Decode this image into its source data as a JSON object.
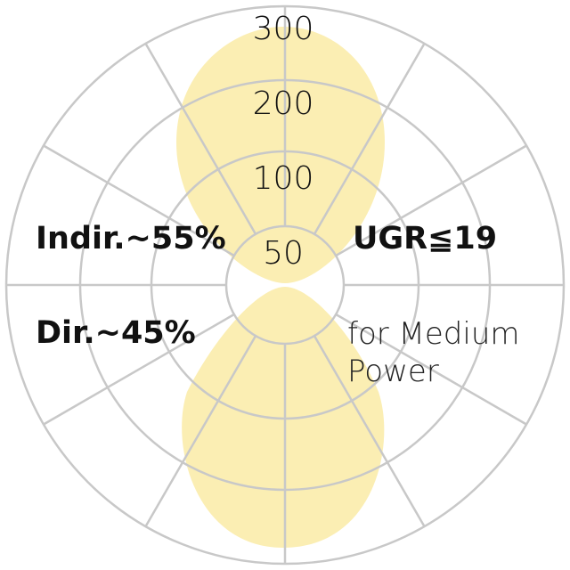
{
  "chart_data": {
    "type": "polar",
    "rings": [
      50,
      100,
      200,
      300
    ],
    "ring_labels": [
      "50",
      "100",
      "200",
      "300"
    ],
    "radial_spokes_every_deg": 30,
    "series": [
      {
        "part": "indirect (upper lobe)",
        "share": "~55%"
      },
      {
        "part": "direct (lower lobe)",
        "share": "~45%"
      }
    ],
    "annotations": {
      "indirect": "Indir.~55%",
      "direct": "Dir.~45%",
      "ugr": "UGR≦19",
      "note_line1": "for Medium",
      "note_line2": "Power"
    },
    "colors": {
      "lobe": "#fbeeb3",
      "grid": "#c8c8c8",
      "text": "#111111"
    }
  }
}
